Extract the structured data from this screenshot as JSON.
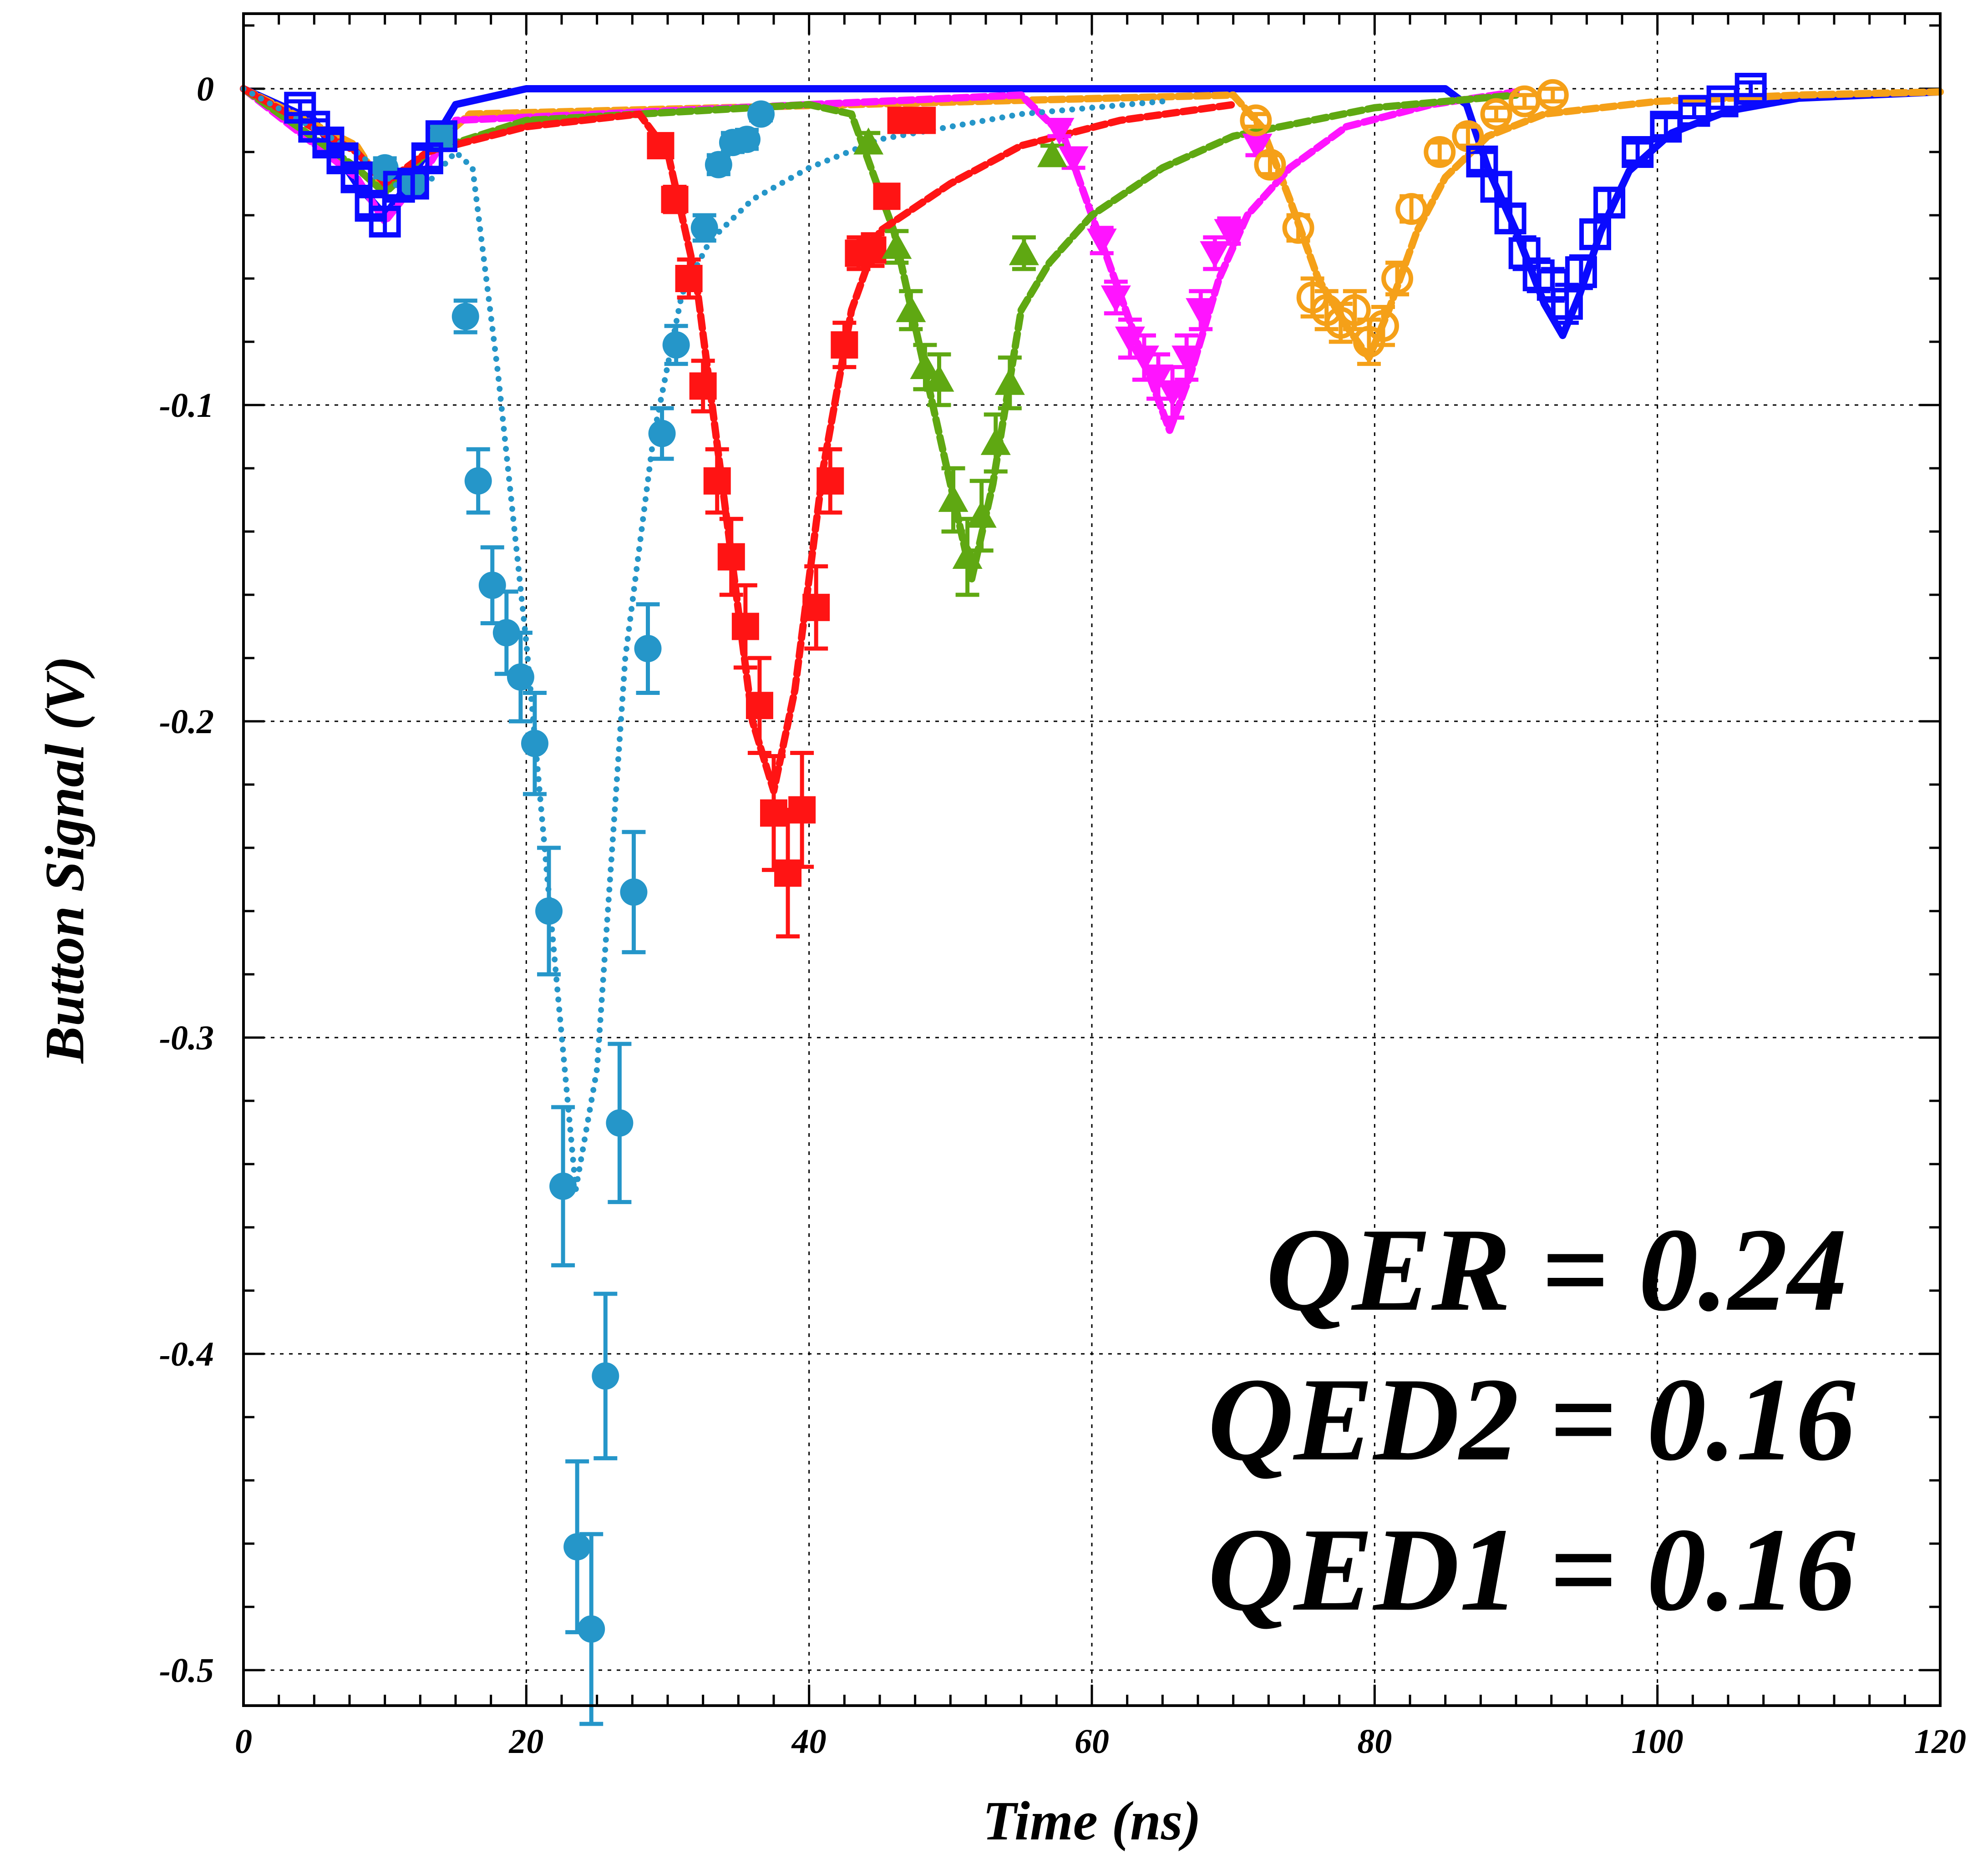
{
  "chart_data": {
    "type": "scatter",
    "xlabel": "Time (ns)",
    "ylabel": "Button Signal (V)",
    "xlim": [
      0,
      120
    ],
    "ylim": [
      -0.51,
      0.025
    ],
    "x_ticks": [
      "0",
      "20",
      "40",
      "60",
      "80",
      "100",
      "120"
    ],
    "y_ticks": [
      "0",
      "-0.1",
      "-0.2",
      "-0.3",
      "-0.4",
      "-0.5"
    ],
    "grid": true,
    "annotations": [
      "QER = 0.24",
      "QED2 = 0.16",
      "QED1 = 0.16"
    ],
    "series": [
      {
        "color": "#2596c9",
        "marker": "filled-circle",
        "fit_style": "dotted",
        "points": [
          {
            "x": 10,
            "y": -0.025,
            "err": 0.003
          },
          {
            "x": 12,
            "y": -0.03,
            "err": 0.003
          },
          {
            "x": 14,
            "y": -0.015,
            "err": 0.003
          },
          {
            "x": 15.7,
            "y": -0.072,
            "err": 0.005
          },
          {
            "x": 16.6,
            "y": -0.124,
            "err": 0.01
          },
          {
            "x": 17.6,
            "y": -0.157,
            "err": 0.012
          },
          {
            "x": 18.6,
            "y": -0.172,
            "err": 0.013
          },
          {
            "x": 19.6,
            "y": -0.186,
            "err": 0.014
          },
          {
            "x": 20.6,
            "y": -0.207,
            "err": 0.016
          },
          {
            "x": 21.6,
            "y": -0.26,
            "err": 0.02
          },
          {
            "x": 22.6,
            "y": -0.347,
            "err": 0.025
          },
          {
            "x": 23.6,
            "y": -0.461,
            "err": 0.027
          },
          {
            "x": 24.6,
            "y": -0.487,
            "err": 0.03
          },
          {
            "x": 25.6,
            "y": -0.407,
            "err": 0.026
          },
          {
            "x": 26.6,
            "y": -0.327,
            "err": 0.025
          },
          {
            "x": 27.6,
            "y": -0.254,
            "err": 0.019
          },
          {
            "x": 28.6,
            "y": -0.177,
            "err": 0.014
          },
          {
            "x": 29.6,
            "y": -0.109,
            "err": 0.008
          },
          {
            "x": 30.6,
            "y": -0.081,
            "err": 0.006
          },
          {
            "x": 32.6,
            "y": -0.044,
            "err": 0.004
          },
          {
            "x": 33.6,
            "y": -0.024,
            "err": 0.003
          },
          {
            "x": 34.6,
            "y": -0.017,
            "err": 0.003
          },
          {
            "x": 35.6,
            "y": -0.016,
            "err": 0.003
          },
          {
            "x": 36.6,
            "y": -0.008,
            "err": 0.002
          }
        ],
        "fit": [
          [
            0,
            0
          ],
          [
            8,
            -0.02
          ],
          [
            12,
            -0.035
          ],
          [
            15,
            -0.02
          ],
          [
            16.2,
            -0.025
          ],
          [
            18,
            -0.09
          ],
          [
            20,
            -0.175
          ],
          [
            22,
            -0.275
          ],
          [
            23.5,
            -0.348
          ],
          [
            25,
            -0.31
          ],
          [
            27,
            -0.18
          ],
          [
            29,
            -0.11
          ],
          [
            31,
            -0.065
          ],
          [
            33,
            -0.048
          ],
          [
            36,
            -0.035
          ],
          [
            40,
            -0.025
          ],
          [
            45,
            -0.016
          ],
          [
            55,
            -0.008
          ],
          [
            65,
            -0.004
          ]
        ]
      },
      {
        "color": "#ff1414",
        "marker": "filled-square",
        "fit_style": "dashed",
        "points": [
          {
            "x": 29.5,
            "y": -0.018,
            "err": 0.003
          },
          {
            "x": 30.5,
            "y": -0.035,
            "err": 0.004
          },
          {
            "x": 31.5,
            "y": -0.06,
            "err": 0.006
          },
          {
            "x": 32.5,
            "y": -0.094,
            "err": 0.008
          },
          {
            "x": 33.5,
            "y": -0.124,
            "err": 0.01
          },
          {
            "x": 34.5,
            "y": -0.148,
            "err": 0.012
          },
          {
            "x": 35.5,
            "y": -0.17,
            "err": 0.013
          },
          {
            "x": 36.5,
            "y": -0.195,
            "err": 0.015
          },
          {
            "x": 37.5,
            "y": -0.229,
            "err": 0.018
          },
          {
            "x": 38.5,
            "y": -0.248,
            "err": 0.02
          },
          {
            "x": 39.5,
            "y": -0.228,
            "err": 0.018
          },
          {
            "x": 40.5,
            "y": -0.164,
            "err": 0.013
          },
          {
            "x": 41.5,
            "y": -0.124,
            "err": 0.01
          },
          {
            "x": 42.5,
            "y": -0.081,
            "err": 0.007
          },
          {
            "x": 43.5,
            "y": -0.052,
            "err": 0.005
          },
          {
            "x": 44.5,
            "y": -0.051,
            "err": 0.005
          },
          {
            "x": 45.5,
            "y": -0.034,
            "err": 0.003
          },
          {
            "x": 46.5,
            "y": -0.01,
            "err": 0.002
          },
          {
            "x": 48,
            "y": -0.01,
            "err": 0.002
          }
        ],
        "fit": [
          [
            0,
            0
          ],
          [
            8,
            -0.02
          ],
          [
            10,
            -0.03
          ],
          [
            13,
            -0.02
          ],
          [
            20,
            -0.012
          ],
          [
            28,
            -0.008
          ],
          [
            30,
            -0.02
          ],
          [
            32,
            -0.06
          ],
          [
            34,
            -0.13
          ],
          [
            36,
            -0.2
          ],
          [
            37.5,
            -0.222
          ],
          [
            39,
            -0.19
          ],
          [
            41,
            -0.12
          ],
          [
            43,
            -0.07
          ],
          [
            45,
            -0.045
          ],
          [
            50,
            -0.03
          ],
          [
            55,
            -0.018
          ],
          [
            62,
            -0.01
          ],
          [
            70,
            -0.005
          ]
        ]
      },
      {
        "color": "#5fa812",
        "marker": "filled-triangle-up",
        "fit_style": "dashed",
        "points": [
          {
            "x": 44.2,
            "y": -0.017,
            "err": 0.003
          },
          {
            "x": 46.2,
            "y": -0.05,
            "err": 0.005
          },
          {
            "x": 47.2,
            "y": -0.07,
            "err": 0.006
          },
          {
            "x": 48.2,
            "y": -0.088,
            "err": 0.007
          },
          {
            "x": 49.2,
            "y": -0.092,
            "err": 0.008
          },
          {
            "x": 50.2,
            "y": -0.13,
            "err": 0.01
          },
          {
            "x": 51.2,
            "y": -0.148,
            "err": 0.012
          },
          {
            "x": 52.2,
            "y": -0.135,
            "err": 0.011
          },
          {
            "x": 53.2,
            "y": -0.112,
            "err": 0.009
          },
          {
            "x": 54.2,
            "y": -0.093,
            "err": 0.008
          },
          {
            "x": 55.2,
            "y": -0.052,
            "err": 0.005
          },
          {
            "x": 57.2,
            "y": -0.021,
            "err": 0.003
          }
        ],
        "fit": [
          [
            0,
            0
          ],
          [
            8,
            -0.025
          ],
          [
            10,
            -0.033
          ],
          [
            13,
            -0.02
          ],
          [
            20,
            -0.01
          ],
          [
            40,
            -0.005
          ],
          [
            43,
            -0.008
          ],
          [
            46,
            -0.045
          ],
          [
            48,
            -0.085
          ],
          [
            50,
            -0.125
          ],
          [
            51.5,
            -0.155
          ],
          [
            53,
            -0.125
          ],
          [
            55,
            -0.07
          ],
          [
            57,
            -0.055
          ],
          [
            60,
            -0.04
          ],
          [
            65,
            -0.025
          ],
          [
            70,
            -0.015
          ],
          [
            80,
            -0.006
          ],
          [
            90,
            -0.002
          ]
        ]
      },
      {
        "color": "#ff14ff",
        "marker": "filled-triangle-down",
        "fit_style": "dashed",
        "points": [
          {
            "x": 57.7,
            "y": -0.013,
            "err": 0.002
          },
          {
            "x": 58.7,
            "y": -0.022,
            "err": 0.003
          },
          {
            "x": 60.7,
            "y": -0.048,
            "err": 0.004
          },
          {
            "x": 61.7,
            "y": -0.066,
            "err": 0.005
          },
          {
            "x": 62.7,
            "y": -0.079,
            "err": 0.006
          },
          {
            "x": 63.7,
            "y": -0.085,
            "err": 0.007
          },
          {
            "x": 64.7,
            "y": -0.091,
            "err": 0.007
          },
          {
            "x": 65.7,
            "y": -0.096,
            "err": 0.008
          },
          {
            "x": 66.7,
            "y": -0.085,
            "err": 0.007
          },
          {
            "x": 67.7,
            "y": -0.07,
            "err": 0.006
          },
          {
            "x": 68.7,
            "y": -0.052,
            "err": 0.005
          },
          {
            "x": 69.7,
            "y": -0.045,
            "err": 0.004
          },
          {
            "x": 71.7,
            "y": -0.018,
            "err": 0.003
          }
        ],
        "fit": [
          [
            0,
            0
          ],
          [
            8,
            -0.028
          ],
          [
            10,
            -0.042
          ],
          [
            13,
            -0.025
          ],
          [
            15,
            -0.01
          ],
          [
            55,
            -0.002
          ],
          [
            58,
            -0.015
          ],
          [
            60,
            -0.04
          ],
          [
            62,
            -0.065
          ],
          [
            64,
            -0.09
          ],
          [
            65.5,
            -0.108
          ],
          [
            67,
            -0.09
          ],
          [
            69,
            -0.06
          ],
          [
            71,
            -0.04
          ],
          [
            74,
            -0.025
          ],
          [
            78,
            -0.012
          ],
          [
            84,
            -0.005
          ],
          [
            90,
            -0.001
          ]
        ]
      },
      {
        "color": "#f5a018",
        "marker": "open-circle",
        "fit_style": "dashed",
        "points": [
          {
            "x": 71.6,
            "y": -0.01,
            "err": 0.002
          },
          {
            "x": 72.6,
            "y": -0.024,
            "err": 0.003
          },
          {
            "x": 74.6,
            "y": -0.044,
            "err": 0.004
          },
          {
            "x": 75.6,
            "y": -0.066,
            "err": 0.006
          },
          {
            "x": 76.6,
            "y": -0.07,
            "err": 0.006
          },
          {
            "x": 77.6,
            "y": -0.074,
            "err": 0.006
          },
          {
            "x": 78.6,
            "y": -0.07,
            "err": 0.006
          },
          {
            "x": 79.6,
            "y": -0.08,
            "err": 0.007
          },
          {
            "x": 80.6,
            "y": -0.075,
            "err": 0.006
          },
          {
            "x": 81.6,
            "y": -0.06,
            "err": 0.005
          },
          {
            "x": 82.6,
            "y": -0.038,
            "err": 0.004
          },
          {
            "x": 84.6,
            "y": -0.02,
            "err": 0.003
          },
          {
            "x": 86.6,
            "y": -0.015,
            "err": 0.003
          },
          {
            "x": 88.6,
            "y": -0.008,
            "err": 0.002
          },
          {
            "x": 90.6,
            "y": -0.004,
            "err": 0.002
          },
          {
            "x": 92.6,
            "y": -0.002,
            "err": 0.002
          }
        ],
        "fit": [
          [
            0,
            0
          ],
          [
            8,
            -0.018
          ],
          [
            10,
            -0.032
          ],
          [
            13,
            -0.02
          ],
          [
            16,
            -0.008
          ],
          [
            70,
            -0.002
          ],
          [
            72,
            -0.012
          ],
          [
            74,
            -0.035
          ],
          [
            76,
            -0.06
          ],
          [
            78,
            -0.075
          ],
          [
            79.6,
            -0.085
          ],
          [
            81,
            -0.07
          ],
          [
            83,
            -0.045
          ],
          [
            85,
            -0.028
          ],
          [
            88,
            -0.015
          ],
          [
            92,
            -0.008
          ],
          [
            100,
            -0.004
          ],
          [
            110,
            -0.002
          ],
          [
            120,
            -0.001
          ]
        ]
      },
      {
        "color": "#0a0aff",
        "marker": "open-square",
        "fit_style": "solid",
        "points": [
          {
            "x": 4,
            "y": -0.006,
            "err": 0.002
          },
          {
            "x": 5,
            "y": -0.012,
            "err": 0.002
          },
          {
            "x": 6,
            "y": -0.017,
            "err": 0.003
          },
          {
            "x": 7,
            "y": -0.022,
            "err": 0.003
          },
          {
            "x": 8,
            "y": -0.028,
            "err": 0.003
          },
          {
            "x": 9,
            "y": -0.037,
            "err": 0.003
          },
          {
            "x": 10,
            "y": -0.042,
            "err": 0.004
          },
          {
            "x": 11,
            "y": -0.031,
            "err": 0.003
          },
          {
            "x": 12,
            "y": -0.03,
            "err": 0.003
          },
          {
            "x": 13,
            "y": -0.022,
            "err": 0.003
          },
          {
            "x": 14,
            "y": -0.015,
            "err": 0.002
          },
          {
            "x": 87.6,
            "y": -0.023,
            "err": 0.003
          },
          {
            "x": 88.6,
            "y": -0.031,
            "err": 0.004
          },
          {
            "x": 89.6,
            "y": -0.041,
            "err": 0.004
          },
          {
            "x": 90.6,
            "y": -0.052,
            "err": 0.005
          },
          {
            "x": 91.6,
            "y": -0.059,
            "err": 0.005
          },
          {
            "x": 92.6,
            "y": -0.062,
            "err": 0.005
          },
          {
            "x": 93.6,
            "y": -0.068,
            "err": 0.006
          },
          {
            "x": 94.6,
            "y": -0.058,
            "err": 0.005
          },
          {
            "x": 95.6,
            "y": -0.046,
            "err": 0.004
          },
          {
            "x": 96.6,
            "y": -0.036,
            "err": 0.004
          },
          {
            "x": 98.6,
            "y": -0.02,
            "err": 0.003
          },
          {
            "x": 100.6,
            "y": -0.012,
            "err": 0.003
          },
          {
            "x": 102.6,
            "y": -0.007,
            "err": 0.002
          },
          {
            "x": 104.6,
            "y": -0.004,
            "err": 0.002
          },
          {
            "x": 106.6,
            "y": 0,
            "err": 0.002
          }
        ],
        "fit": [
          [
            0,
            0
          ],
          [
            5,
            -0.01
          ],
          [
            8,
            -0.03
          ],
          [
            10,
            -0.04
          ],
          [
            11,
            -0.034
          ],
          [
            13,
            -0.02
          ],
          [
            15,
            -0.005
          ],
          [
            20,
            0
          ],
          [
            85,
            0
          ],
          [
            86.5,
            -0.005
          ],
          [
            88,
            -0.025
          ],
          [
            90,
            -0.045
          ],
          [
            92,
            -0.068
          ],
          [
            93.3,
            -0.078
          ],
          [
            94.5,
            -0.065
          ],
          [
            96,
            -0.045
          ],
          [
            98,
            -0.026
          ],
          [
            101,
            -0.014
          ],
          [
            105,
            -0.007
          ],
          [
            110,
            -0.003
          ],
          [
            120,
            -0.001
          ]
        ]
      }
    ]
  }
}
